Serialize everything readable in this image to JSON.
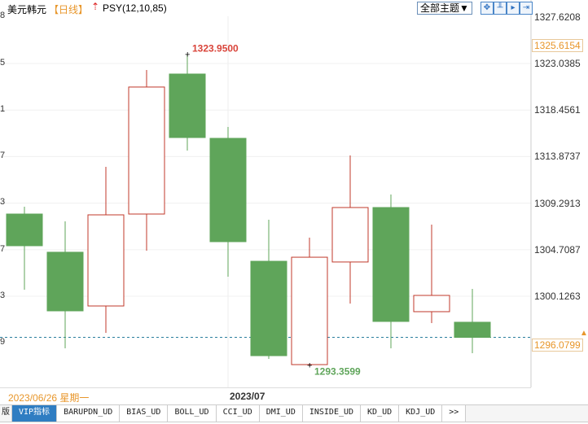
{
  "header": {
    "title": "美元韩元",
    "period": "【日线】",
    "indicator": "PSY(12,10,85)",
    "theme_button": "全部主题▼",
    "tool_buttons": [
      "zoom-fit",
      "chart-mode",
      "play",
      "exit"
    ]
  },
  "left_axis_fragments": [
    "8",
    "5",
    "1",
    "7",
    "3",
    "7",
    "3",
    "9"
  ],
  "right_axis": {
    "top_label": "1327.6208",
    "high_marker": "1325.6154",
    "current_price": "1296.0799"
  },
  "date_bar": {
    "cursor_date": "2023/06/26 星期一",
    "month_label": "2023/07"
  },
  "tabs": {
    "left_fragment": "版",
    "items": [
      "VIP指标",
      "BARUPDN_UD",
      "BIAS_UD",
      "BOLL_UD",
      "CCI_UD",
      "DMI_UD",
      "INSIDE_UD",
      "KD_UD",
      "KDJ_UD",
      ">>"
    ],
    "active": 0
  },
  "colors": {
    "up": "#c0392b",
    "down": "#5fa55a",
    "accent": "#e8962a",
    "high_label": "#d9443a",
    "low_label": "#5fa55a"
  },
  "chart_data": {
    "type": "candlestick",
    "yticks": [
      1323.0385,
      1318.4561,
      1313.8737,
      1309.2913,
      1304.7087,
      1300.1263
    ],
    "annotations": {
      "max": "1323.9500",
      "min": "1293.3599"
    },
    "candles": [
      {
        "open": 1308.22,
        "high": 1308.94,
        "low": 1300.77,
        "close": 1305.1
      },
      {
        "open": 1304.46,
        "high": 1307.5,
        "low": 1295.0,
        "close": 1298.69
      },
      {
        "open": 1299.17,
        "high": 1312.87,
        "low": 1296.53,
        "close": 1308.14
      },
      {
        "open": 1308.22,
        "high": 1322.4,
        "low": 1304.62,
        "close": 1320.72
      },
      {
        "open": 1322.0,
        "high": 1323.95,
        "low": 1314.47,
        "close": 1315.75
      },
      {
        "open": 1315.67,
        "high": 1316.79,
        "low": 1302.05,
        "close": 1305.5
      },
      {
        "open": 1303.57,
        "high": 1307.66,
        "low": 1293.96,
        "close": 1294.28
      },
      {
        "open": 1293.4,
        "high": 1305.9,
        "low": 1293.36,
        "close": 1303.97
      },
      {
        "open": 1303.5,
        "high": 1313.99,
        "low": 1299.41,
        "close": 1308.86
      },
      {
        "open": 1308.86,
        "high": 1310.14,
        "low": 1295.0,
        "close": 1297.65
      },
      {
        "open": 1298.61,
        "high": 1307.18,
        "low": 1297.49,
        "close": 1300.21
      },
      {
        "open": 1297.57,
        "high": 1300.85,
        "low": 1294.52,
        "close": 1296.08
      }
    ]
  }
}
